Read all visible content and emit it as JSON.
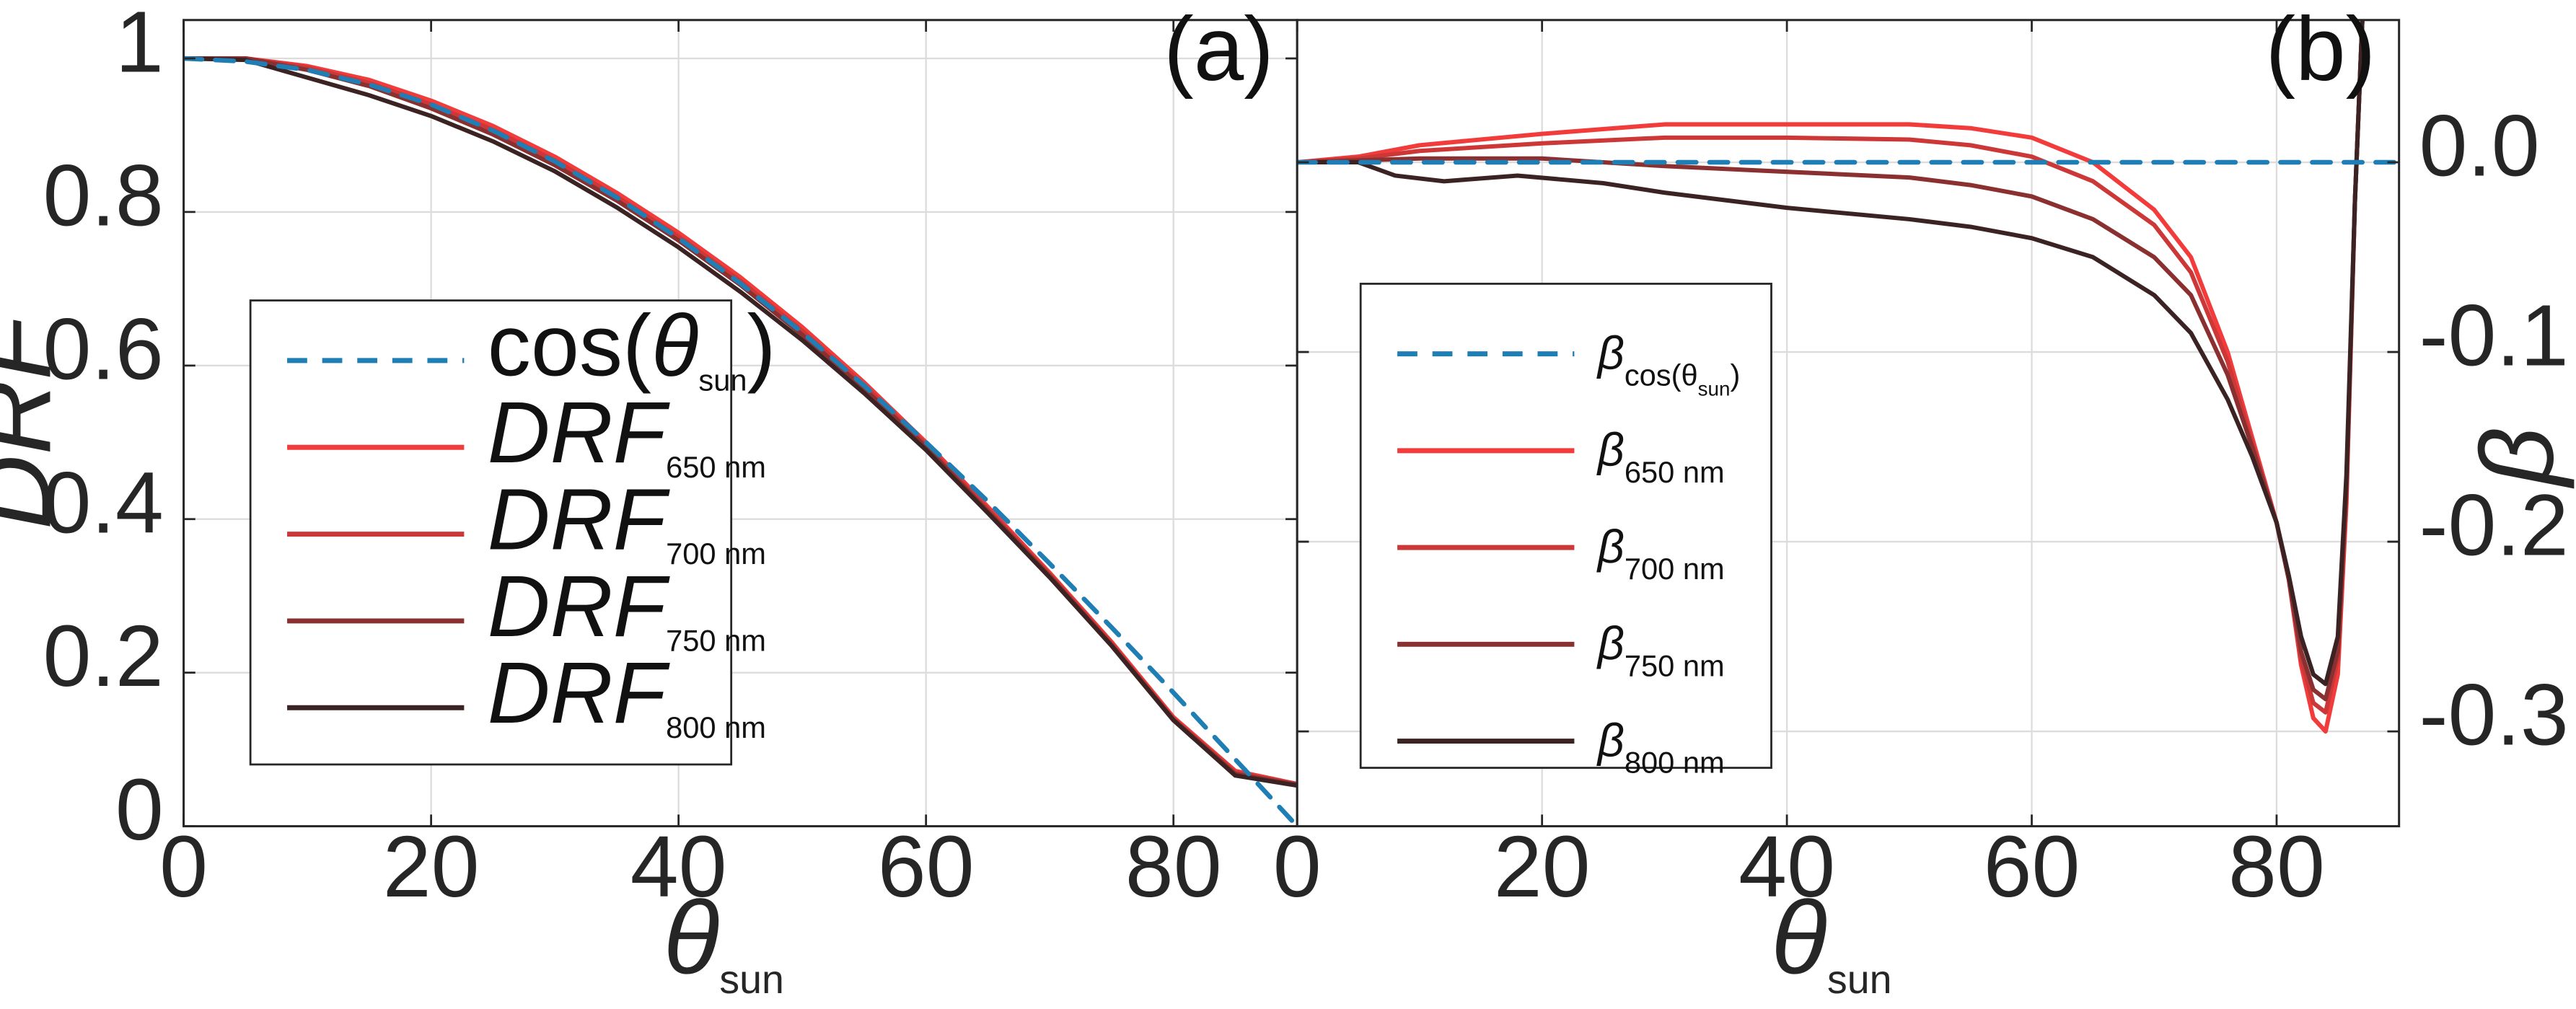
{
  "colors": {
    "cos": "#1f7fb4",
    "s650": "#f23c3c",
    "s700": "#cc3838",
    "s750": "#8a3030",
    "s800": "#3b2323",
    "grid": "#dcdcdc",
    "axis": "#262626"
  },
  "chart_data": [
    {
      "type": "line",
      "panel_label": "(a)",
      "xlabel": {
        "symbol": "θ",
        "sub": "sun"
      },
      "ylabel": "DRF",
      "xlim": [
        0,
        90
      ],
      "ylim": [
        0,
        1.05
      ],
      "xticks": [
        0,
        20,
        40,
        60,
        80
      ],
      "xtick_labels": [
        "0",
        "20",
        "40",
        "60",
        "80"
      ],
      "yticks": [
        0,
        0.2,
        0.4,
        0.6,
        0.8,
        1
      ],
      "ytick_labels": [
        "0",
        "0.2",
        "0.4",
        "0.6",
        "0.8",
        "1"
      ],
      "grid": true,
      "legend_position": "center-left",
      "series": [
        {
          "key": "cos",
          "color_key": "cos",
          "dashed": true,
          "legend": {
            "main": "cos(",
            "symbol": "θ",
            "sub": "sun",
            "close": ")"
          },
          "x": [
            0,
            5,
            10,
            15,
            20,
            25,
            30,
            35,
            40,
            45,
            50,
            55,
            60,
            65,
            70,
            75,
            80,
            85,
            90
          ],
          "y": [
            1.0,
            0.996,
            0.985,
            0.966,
            0.94,
            0.906,
            0.866,
            0.819,
            0.766,
            0.707,
            0.643,
            0.574,
            0.5,
            0.423,
            0.342,
            0.259,
            0.174,
            0.087,
            0.0
          ]
        },
        {
          "key": "650",
          "color_key": "s650",
          "dashed": false,
          "legend": {
            "main": "DRF",
            "sub": "650 nm"
          },
          "x": [
            0,
            5,
            10,
            15,
            20,
            25,
            30,
            35,
            40,
            45,
            50,
            55,
            60,
            65,
            70,
            75,
            80,
            85,
            90
          ],
          "y": [
            1.0,
            1.0,
            0.99,
            0.972,
            0.945,
            0.912,
            0.872,
            0.825,
            0.773,
            0.715,
            0.65,
            0.578,
            0.5,
            0.416,
            0.33,
            0.24,
            0.142,
            0.072,
            0.055
          ]
        },
        {
          "key": "700",
          "color_key": "s700",
          "dashed": false,
          "legend": {
            "main": "DRF",
            "sub": "700 nm"
          },
          "x": [
            0,
            5,
            10,
            15,
            20,
            25,
            30,
            35,
            40,
            45,
            50,
            55,
            60,
            65,
            70,
            75,
            80,
            85,
            90
          ],
          "y": [
            1.0,
            1.0,
            0.988,
            0.968,
            0.94,
            0.907,
            0.867,
            0.82,
            0.768,
            0.71,
            0.645,
            0.574,
            0.497,
            0.413,
            0.328,
            0.238,
            0.14,
            0.07,
            0.055
          ]
        },
        {
          "key": "750",
          "color_key": "s750",
          "dashed": false,
          "legend": {
            "main": "DRF",
            "sub": "750 nm"
          },
          "x": [
            0,
            5,
            10,
            15,
            20,
            25,
            30,
            35,
            40,
            45,
            50,
            55,
            60,
            65,
            70,
            75,
            80,
            85,
            90
          ],
          "y": [
            1.0,
            1.0,
            0.985,
            0.964,
            0.935,
            0.901,
            0.861,
            0.815,
            0.763,
            0.705,
            0.64,
            0.57,
            0.494,
            0.41,
            0.326,
            0.236,
            0.139,
            0.068,
            0.054
          ]
        },
        {
          "key": "800",
          "color_key": "s800",
          "dashed": false,
          "legend": {
            "main": "DRF",
            "sub": "800 nm"
          },
          "x": [
            0,
            5,
            10,
            15,
            20,
            25,
            30,
            35,
            40,
            45,
            50,
            55,
            60,
            65,
            70,
            75,
            80,
            85,
            90
          ],
          "y": [
            1.0,
            0.998,
            0.975,
            0.952,
            0.925,
            0.892,
            0.853,
            0.806,
            0.754,
            0.696,
            0.633,
            0.564,
            0.49,
            0.408,
            0.324,
            0.235,
            0.138,
            0.066,
            0.053
          ]
        }
      ]
    },
    {
      "type": "line",
      "panel_label": "(b)",
      "xlabel": {
        "symbol": "θ",
        "sub": "sun"
      },
      "ylabel": "β",
      "xlim": [
        0,
        90
      ],
      "ylim": [
        -0.35,
        0.075
      ],
      "xticks": [
        0,
        20,
        40,
        60,
        80
      ],
      "xtick_labels": [
        "0",
        "20",
        "40",
        "60",
        "80"
      ],
      "yticks": [
        0.0,
        -0.1,
        -0.2,
        -0.3
      ],
      "ytick_labels": [
        "0.0",
        "-0.1",
        "-0.2",
        "-0.3"
      ],
      "grid": true,
      "legend_position": "center-left",
      "series": [
        {
          "key": "cos",
          "color_key": "cos",
          "dashed": true,
          "legend": {
            "symbol": "β",
            "sub": "cos(θ",
            "sub2": "sun",
            "close": ")"
          },
          "x": [
            0,
            90
          ],
          "y": [
            0.0,
            0.0
          ]
        },
        {
          "key": "650",
          "color_key": "s650",
          "dashed": false,
          "legend": {
            "symbol": "β",
            "sub": "650 nm"
          },
          "x": [
            0,
            5,
            10,
            20,
            30,
            40,
            50,
            55,
            60,
            65,
            70,
            73,
            76,
            78,
            80,
            81,
            82,
            83,
            84,
            85,
            85.7,
            86.4,
            87
          ],
          "y": [
            0.0,
            0.003,
            0.009,
            0.015,
            0.02,
            0.02,
            0.02,
            0.018,
            0.013,
            0.0,
            -0.025,
            -0.05,
            -0.1,
            -0.145,
            -0.19,
            -0.22,
            -0.265,
            -0.293,
            -0.3,
            -0.27,
            -0.18,
            -0.02,
            0.075
          ]
        },
        {
          "key": "700",
          "color_key": "s700",
          "dashed": false,
          "legend": {
            "symbol": "β",
            "sub": "700 nm"
          },
          "x": [
            0,
            5,
            10,
            20,
            30,
            40,
            50,
            55,
            60,
            65,
            70,
            73,
            76,
            78,
            80,
            81,
            82,
            83,
            84,
            85,
            85.7,
            86.4,
            87
          ],
          "y": [
            0.0,
            0.002,
            0.006,
            0.01,
            0.013,
            0.013,
            0.012,
            0.009,
            0.003,
            -0.01,
            -0.033,
            -0.058,
            -0.105,
            -0.148,
            -0.19,
            -0.22,
            -0.262,
            -0.285,
            -0.29,
            -0.262,
            -0.175,
            -0.02,
            0.075
          ]
        },
        {
          "key": "750",
          "color_key": "s750",
          "dashed": false,
          "legend": {
            "symbol": "β",
            "sub": "750 nm"
          },
          "x": [
            0,
            5,
            10,
            20,
            30,
            40,
            50,
            55,
            60,
            65,
            70,
            73,
            76,
            78,
            80,
            81,
            82,
            83,
            84,
            85,
            85.7,
            86.4,
            87
          ],
          "y": [
            0.0,
            0.001,
            0.002,
            0.002,
            -0.002,
            -0.005,
            -0.008,
            -0.012,
            -0.018,
            -0.03,
            -0.05,
            -0.07,
            -0.112,
            -0.15,
            -0.19,
            -0.22,
            -0.258,
            -0.278,
            -0.283,
            -0.258,
            -0.172,
            -0.02,
            0.075
          ]
        },
        {
          "key": "800",
          "color_key": "s800",
          "dashed": false,
          "legend": {
            "symbol": "β",
            "sub": "800 nm"
          },
          "x": [
            0,
            5,
            8,
            12,
            18,
            25,
            30,
            40,
            50,
            55,
            60,
            65,
            70,
            73,
            76,
            78,
            80,
            81,
            82,
            83,
            84,
            85,
            85.7,
            86.4,
            87
          ],
          "y": [
            0.0,
            0.0,
            -0.007,
            -0.01,
            -0.007,
            -0.011,
            -0.016,
            -0.024,
            -0.03,
            -0.034,
            -0.04,
            -0.05,
            -0.07,
            -0.09,
            -0.125,
            -0.155,
            -0.19,
            -0.218,
            -0.25,
            -0.27,
            -0.275,
            -0.25,
            -0.165,
            -0.02,
            0.075
          ]
        }
      ]
    }
  ]
}
